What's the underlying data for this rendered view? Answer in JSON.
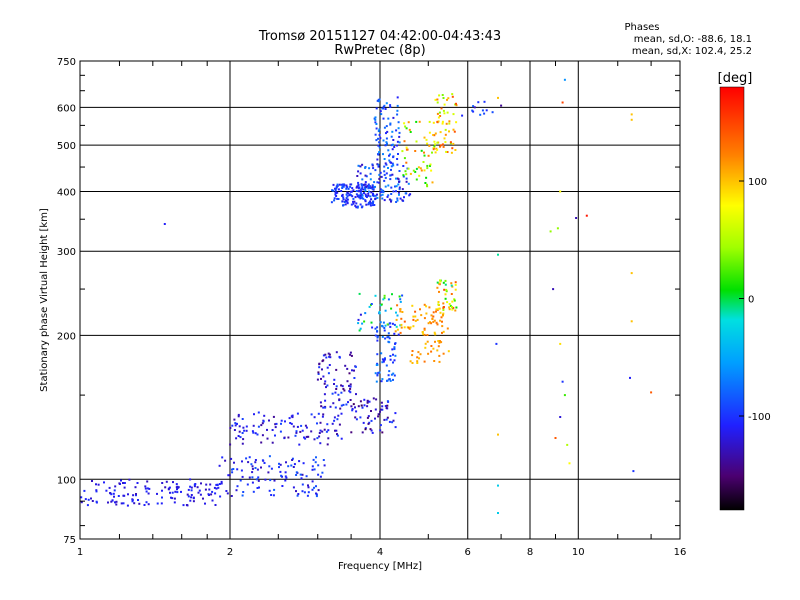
{
  "chart_data": {
    "type": "scatter",
    "title": "Tromsø 20151127 04:42:00-04:43:43",
    "subtitle": "RwPretec (8p)",
    "xlabel": "Frequency [MHz]",
    "ylabel": "Stationary phase Virtual Height [km]",
    "x_scale": "log",
    "y_scale": "log",
    "xlim": [
      1,
      16
    ],
    "ylim": [
      75,
      750
    ],
    "x_ticks": [
      1,
      2,
      4,
      6,
      8,
      10,
      16
    ],
    "x_tick_labels": [
      "1",
      "2",
      "4",
      "6",
      "8",
      "10",
      "16"
    ],
    "y_ticks": [
      75,
      100,
      200,
      300,
      400,
      500,
      600,
      750
    ],
    "y_tick_labels": [
      "75",
      "100",
      "200",
      "300",
      "400",
      "500",
      "600",
      "750"
    ],
    "grid": true,
    "phase_stats": {
      "heading": "Phases",
      "line_o": "mean, sd,O: -88.6, 18.1",
      "line_x": "mean, sd,X: 102.4, 25.2"
    },
    "colorbar": {
      "label": "[deg]",
      "range": [
        -180,
        180
      ],
      "ticks": [
        100,
        0,
        -100
      ],
      "tick_labels": [
        "100",
        "0",
        "-100"
      ]
    },
    "clusters": [
      {
        "f": [
          1.0,
          1.9
        ],
        "h": [
          88,
          100
        ],
        "n": 140,
        "phase": [
          -130,
          -100
        ]
      },
      {
        "f": [
          1.9,
          3.1
        ],
        "h": [
          92,
          112
        ],
        "n": 120,
        "phase": [
          -130,
          -80
        ]
      },
      {
        "f": [
          2.0,
          3.4
        ],
        "h": [
          118,
          138
        ],
        "n": 110,
        "phase": [
          -140,
          -90
        ]
      },
      {
        "f": [
          3.0,
          3.6
        ],
        "h": [
          140,
          185
        ],
        "n": 80,
        "phase": [
          -150,
          -90
        ]
      },
      {
        "f": [
          3.5,
          4.3
        ],
        "h": [
          125,
          148
        ],
        "n": 60,
        "phase": [
          -160,
          -90
        ]
      },
      {
        "f": [
          3.9,
          4.3
        ],
        "h": [
          160,
          215
        ],
        "n": 70,
        "phase": [
          -110,
          -60
        ]
      },
      {
        "f": [
          3.6,
          4.5
        ],
        "h": [
          200,
          245
        ],
        "n": 40,
        "phase": [
          -120,
          40
        ]
      },
      {
        "f": [
          4.3,
          5.5
        ],
        "h": [
          200,
          232
        ],
        "n": 70,
        "phase": [
          90,
          140
        ]
      },
      {
        "f": [
          4.6,
          5.5
        ],
        "h": [
          175,
          195
        ],
        "n": 30,
        "phase": [
          95,
          130
        ]
      },
      {
        "f": [
          5.2,
          5.7
        ],
        "h": [
          225,
          262
        ],
        "n": 45,
        "phase": [
          -20,
          150
        ]
      },
      {
        "f": [
          3.2,
          3.9
        ],
        "h": [
          370,
          415
        ],
        "n": 160,
        "phase": [
          -120,
          -80
        ]
      },
      {
        "f": [
          3.6,
          4.6
        ],
        "h": [
          380,
          460
        ],
        "n": 120,
        "phase": [
          -130,
          -60
        ]
      },
      {
        "f": [
          3.9,
          4.4
        ],
        "h": [
          460,
          630
        ],
        "n": 80,
        "phase": [
          -120,
          -60
        ]
      },
      {
        "f": [
          4.4,
          5.2
        ],
        "h": [
          410,
          560
        ],
        "n": 60,
        "phase": [
          0,
          130
        ]
      },
      {
        "f": [
          5.1,
          5.7
        ],
        "h": [
          480,
          640
        ],
        "n": 60,
        "phase": [
          30,
          150
        ]
      },
      {
        "f": [
          5.8,
          6.8
        ],
        "h": [
          570,
          625
        ],
        "n": 10,
        "phase": [
          -110,
          -80
        ]
      }
    ],
    "isolated_points": [
      {
        "x": 1.48,
        "y": 342,
        "phase": -110
      },
      {
        "x": 6.9,
        "y": 295,
        "phase": -10
      },
      {
        "x": 6.85,
        "y": 192,
        "phase": -100
      },
      {
        "x": 6.9,
        "y": 124,
        "phase": 100
      },
      {
        "x": 6.9,
        "y": 97,
        "phase": -30
      },
      {
        "x": 6.9,
        "y": 85,
        "phase": -30
      },
      {
        "x": 8.8,
        "y": 330,
        "phase": 40
      },
      {
        "x": 9.1,
        "y": 335,
        "phase": 40
      },
      {
        "x": 8.9,
        "y": 250,
        "phase": -130
      },
      {
        "x": 9.2,
        "y": 400,
        "phase": 80
      },
      {
        "x": 9.3,
        "y": 614,
        "phase": 150
      },
      {
        "x": 9.3,
        "y": 160,
        "phase": -100
      },
      {
        "x": 9.4,
        "y": 150,
        "phase": 20
      },
      {
        "x": 9.2,
        "y": 135,
        "phase": -120
      },
      {
        "x": 9.0,
        "y": 122,
        "phase": 140
      },
      {
        "x": 9.5,
        "y": 118,
        "phase": 50
      },
      {
        "x": 9.6,
        "y": 108,
        "phase": 80
      },
      {
        "x": 9.2,
        "y": 192,
        "phase": 90
      },
      {
        "x": 9.9,
        "y": 352,
        "phase": -130
      },
      {
        "x": 10.4,
        "y": 356,
        "phase": 170
      },
      {
        "x": 12.8,
        "y": 580,
        "phase": 100
      },
      {
        "x": 12.8,
        "y": 565,
        "phase": 100
      },
      {
        "x": 12.8,
        "y": 270,
        "phase": 100
      },
      {
        "x": 12.8,
        "y": 214,
        "phase": 100
      },
      {
        "x": 12.7,
        "y": 163,
        "phase": -110
      },
      {
        "x": 12.9,
        "y": 104,
        "phase": -100
      },
      {
        "x": 14.0,
        "y": 152,
        "phase": 140
      },
      {
        "x": 6.3,
        "y": 615,
        "phase": -100
      },
      {
        "x": 6.2,
        "y": 600,
        "phase": -130
      },
      {
        "x": 7.0,
        "y": 605,
        "phase": -140
      },
      {
        "x": 9.4,
        "y": 685,
        "phase": -60
      },
      {
        "x": 6.9,
        "y": 628,
        "phase": 100
      }
    ]
  },
  "colors": {
    "background": "#ffffff",
    "axis": "#000000"
  }
}
